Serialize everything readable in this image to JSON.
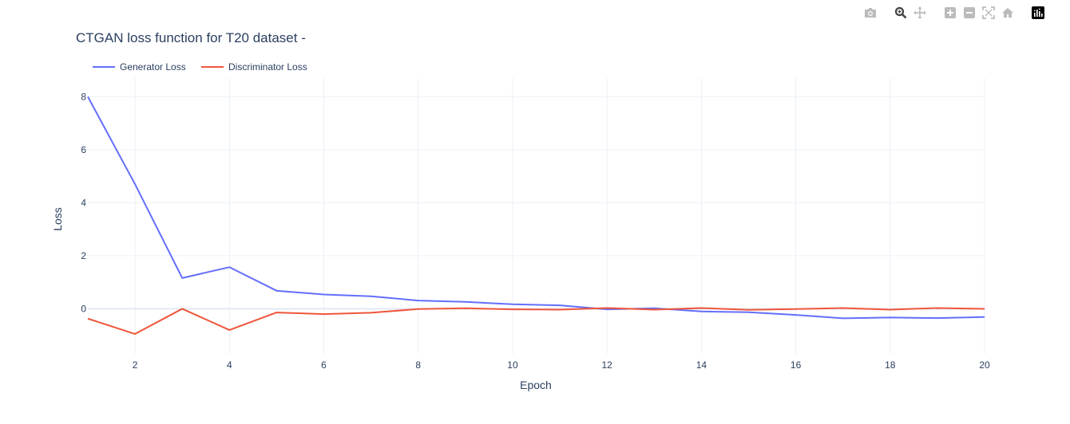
{
  "modebar": {
    "buttons": [
      "camera-icon",
      "zoom-icon",
      "pan-icon",
      "zoom-in-icon",
      "zoom-out-icon",
      "autoscale-icon",
      "reset-axes-icon",
      "plotly-logo-icon"
    ],
    "icon_color": "#bbbbbb",
    "active_color": "#444444"
  },
  "chart_data": {
    "type": "line",
    "title": "CTGAN loss function for T20 dataset -",
    "xlabel": "Epoch",
    "ylabel": "Loss",
    "xlim": [
      1,
      20
    ],
    "ylim": [
      -1.7,
      8.7
    ],
    "xticks": [
      2,
      4,
      6,
      8,
      10,
      12,
      14,
      16,
      18,
      20
    ],
    "yticks": [
      0,
      2,
      4,
      6,
      8
    ],
    "grid": true,
    "legend_position": "top-left, horizontal",
    "x": [
      1,
      2,
      3,
      4,
      5,
      6,
      7,
      8,
      9,
      10,
      11,
      12,
      13,
      14,
      15,
      16,
      17,
      18,
      19,
      20
    ],
    "series": [
      {
        "name": "Generator Loss",
        "color": "#636efa",
        "values": [
          8.0,
          4.7,
          1.16,
          1.57,
          0.68,
          0.54,
          0.47,
          0.31,
          0.26,
          0.17,
          0.13,
          -0.02,
          0.02,
          -0.1,
          -0.13,
          -0.23,
          -0.36,
          -0.33,
          -0.35,
          -0.31
        ]
      },
      {
        "name": "Discriminator Loss",
        "color": "#ef553b",
        "values": [
          -0.37,
          -0.95,
          0.0,
          -0.8,
          -0.14,
          -0.2,
          -0.15,
          -0.01,
          0.02,
          -0.02,
          -0.03,
          0.03,
          -0.03,
          0.03,
          -0.04,
          -0.01,
          0.03,
          -0.03,
          0.03,
          0.0
        ]
      }
    ]
  }
}
